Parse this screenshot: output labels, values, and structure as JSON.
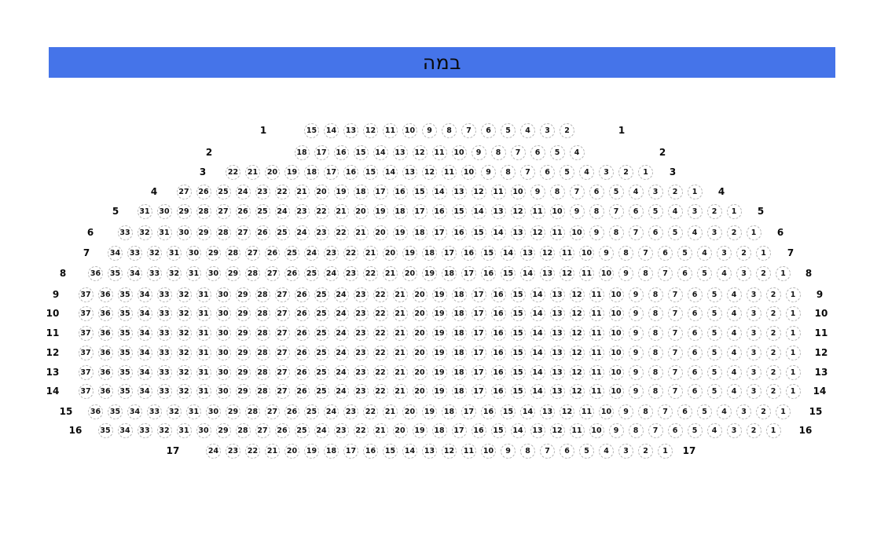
{
  "stage": {
    "label": "במה"
  },
  "colors": {
    "stage_blue": "#4574e9",
    "seat_border_gray": "#b4b4b4",
    "seat_number_black": "#141414"
  },
  "rows": [
    {
      "label": "1",
      "seats": [
        15,
        14,
        13,
        12,
        11,
        10,
        9,
        8,
        7,
        6,
        5,
        4,
        3,
        2
      ]
    },
    {
      "label": "2",
      "seats": [
        18,
        17,
        16,
        15,
        14,
        13,
        12,
        11,
        10,
        9,
        8,
        7,
        6,
        5,
        4
      ]
    },
    {
      "label": "3",
      "seats": [
        22,
        21,
        20,
        19,
        18,
        17,
        16,
        15,
        14,
        13,
        12,
        11,
        10,
        9,
        8,
        7,
        6,
        5,
        4,
        3,
        2,
        1
      ]
    },
    {
      "label": "4",
      "seats": [
        27,
        26,
        25,
        24,
        23,
        22,
        21,
        20,
        19,
        18,
        17,
        16,
        15,
        14,
        13,
        12,
        11,
        10,
        9,
        8,
        7,
        6,
        5,
        4,
        3,
        2,
        1
      ]
    },
    {
      "label": "5",
      "seats": [
        31,
        30,
        29,
        28,
        27,
        26,
        25,
        24,
        23,
        22,
        21,
        20,
        19,
        18,
        17,
        16,
        15,
        14,
        13,
        12,
        11,
        10,
        9,
        8,
        7,
        6,
        5,
        4,
        3,
        2,
        1
      ]
    },
    {
      "label": "6",
      "seats": [
        33,
        32,
        31,
        30,
        29,
        28,
        27,
        26,
        25,
        24,
        23,
        22,
        21,
        20,
        19,
        18,
        17,
        16,
        15,
        14,
        13,
        12,
        11,
        10,
        9,
        8,
        7,
        6,
        5,
        4,
        3,
        2,
        1
      ]
    },
    {
      "label": "7",
      "seats": [
        34,
        33,
        32,
        31,
        30,
        29,
        28,
        27,
        26,
        25,
        24,
        23,
        22,
        21,
        20,
        19,
        18,
        17,
        16,
        15,
        14,
        13,
        12,
        11,
        10,
        9,
        8,
        7,
        6,
        5,
        4,
        3,
        2,
        1
      ]
    },
    {
      "label": "8",
      "seats": [
        36,
        35,
        34,
        33,
        32,
        31,
        30,
        29,
        28,
        27,
        26,
        25,
        24,
        23,
        22,
        21,
        20,
        19,
        18,
        17,
        16,
        15,
        14,
        13,
        12,
        11,
        10,
        9,
        8,
        7,
        6,
        5,
        4,
        3,
        2,
        1
      ]
    },
    {
      "label": "9",
      "seats": [
        37,
        36,
        35,
        34,
        33,
        32,
        31,
        30,
        29,
        28,
        27,
        26,
        25,
        24,
        23,
        22,
        21,
        20,
        19,
        18,
        17,
        16,
        15,
        14,
        13,
        12,
        11,
        10,
        9,
        8,
        7,
        6,
        5,
        4,
        3,
        2,
        1
      ]
    },
    {
      "label": "10",
      "seats": [
        37,
        36,
        35,
        34,
        33,
        32,
        31,
        30,
        29,
        28,
        27,
        26,
        25,
        24,
        23,
        22,
        21,
        20,
        19,
        18,
        17,
        16,
        15,
        14,
        13,
        12,
        11,
        10,
        9,
        8,
        7,
        6,
        5,
        4,
        3,
        2,
        1
      ]
    },
    {
      "label": "11",
      "seats": [
        37,
        36,
        35,
        34,
        33,
        32,
        31,
        30,
        29,
        28,
        27,
        26,
        25,
        24,
        23,
        22,
        21,
        20,
        19,
        18,
        17,
        16,
        15,
        14,
        13,
        12,
        11,
        10,
        9,
        8,
        7,
        6,
        5,
        4,
        3,
        2,
        1
      ]
    },
    {
      "label": "12",
      "seats": [
        37,
        36,
        35,
        34,
        33,
        32,
        31,
        30,
        29,
        28,
        27,
        26,
        25,
        24,
        23,
        22,
        21,
        20,
        19,
        18,
        17,
        16,
        15,
        14,
        13,
        12,
        11,
        10,
        9,
        8,
        7,
        6,
        5,
        4,
        3,
        2,
        1
      ]
    },
    {
      "label": "13",
      "seats": [
        37,
        36,
        35,
        34,
        33,
        32,
        31,
        30,
        29,
        28,
        27,
        26,
        25,
        24,
        23,
        22,
        21,
        20,
        19,
        18,
        17,
        16,
        15,
        14,
        13,
        12,
        11,
        10,
        9,
        8,
        7,
        6,
        5,
        4,
        3,
        2,
        1
      ]
    },
    {
      "label": "14",
      "seats": [
        37,
        36,
        35,
        34,
        33,
        32,
        31,
        30,
        29,
        28,
        27,
        26,
        25,
        24,
        23,
        22,
        21,
        20,
        19,
        18,
        17,
        16,
        15,
        14,
        13,
        12,
        11,
        10,
        9,
        8,
        7,
        6,
        5,
        4,
        3,
        2,
        1
      ]
    },
    {
      "label": "15",
      "seats": [
        36,
        35,
        34,
        33,
        32,
        31,
        30,
        29,
        28,
        27,
        26,
        25,
        24,
        23,
        22,
        21,
        20,
        19,
        18,
        17,
        16,
        15,
        14,
        13,
        12,
        11,
        10,
        9,
        8,
        7,
        6,
        5,
        4,
        3,
        2,
        1
      ]
    },
    {
      "label": "16",
      "seats": [
        35,
        34,
        33,
        32,
        31,
        30,
        29,
        28,
        27,
        26,
        25,
        24,
        23,
        22,
        21,
        20,
        19,
        18,
        17,
        16,
        15,
        14,
        13,
        12,
        11,
        10,
        9,
        8,
        7,
        6,
        5,
        4,
        3,
        2,
        1
      ]
    },
    {
      "label": "17",
      "seats": [
        24,
        23,
        22,
        21,
        20,
        19,
        18,
        17,
        16,
        15,
        14,
        13,
        12,
        11,
        10,
        9,
        8,
        7,
        6,
        5,
        4,
        3,
        2,
        1
      ]
    }
  ]
}
